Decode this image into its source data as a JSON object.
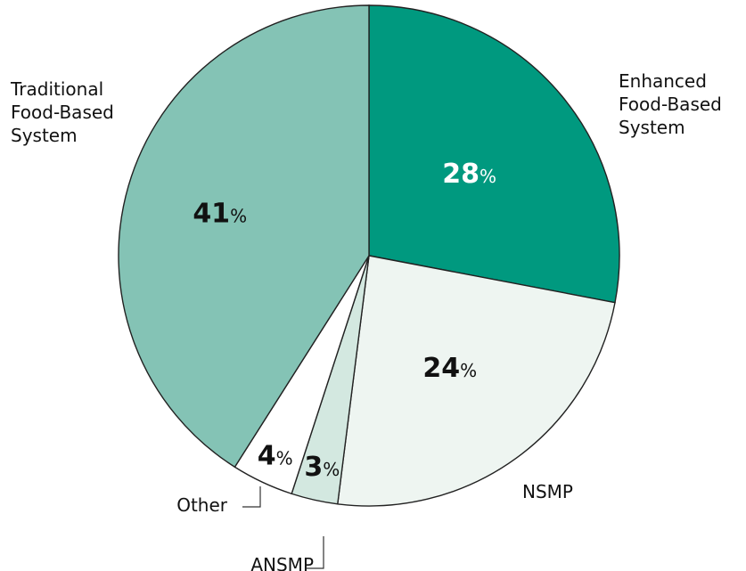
{
  "chart_data": {
    "type": "pie",
    "title": "",
    "start": "12 o'clock, clockwise",
    "slices": [
      {
        "name": "Enhanced Food-Based System",
        "label_lines": [
          "Enhanced",
          "Food-Based",
          "System"
        ],
        "value": 28,
        "value_text": "28",
        "color": "#00997f",
        "value_color": "#ffffff"
      },
      {
        "name": "NSMP",
        "label_lines": [
          "NSMP"
        ],
        "value": 24,
        "value_text": "24",
        "color": "#eef5f1",
        "value_color": "#111111"
      },
      {
        "name": "ANSMP",
        "label_lines": [
          "ANSMP"
        ],
        "value": 3,
        "value_text": "3",
        "color": "#d3e8e0",
        "value_color": "#111111"
      },
      {
        "name": "Other",
        "label_lines": [
          "Other"
        ],
        "value": 4,
        "value_text": "4",
        "color": "#ffffff",
        "value_color": "#111111"
      },
      {
        "name": "Traditional Food-Based System",
        "label_lines": [
          "Traditional",
          "Food-Based",
          "System"
        ],
        "value": 41,
        "value_text": "41",
        "color": "#84c3b5",
        "value_color": "#111111"
      }
    ],
    "value_suffix": "%",
    "outline_color": "#222222"
  }
}
